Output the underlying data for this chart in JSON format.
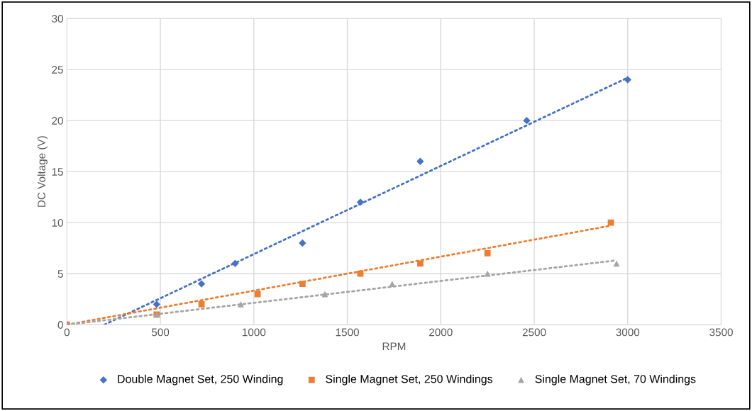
{
  "chart_data": {
    "type": "scatter",
    "xlabel": "RPM",
    "ylabel": "DC Voltage (V)",
    "xlim": [
      0,
      3500
    ],
    "xticks": [
      0,
      500,
      1000,
      1500,
      2000,
      2500,
      3000,
      3500
    ],
    "ylim": [
      0,
      30
    ],
    "yticks": [
      0,
      5,
      10,
      15,
      20,
      25,
      30
    ],
    "grid": true,
    "legend": "bottom",
    "series": [
      {
        "name": "Double Magnet Set, 250 Winding",
        "color": "#4472c4",
        "marker": "diamond",
        "x": [
          0,
          480,
          720,
          900,
          1260,
          1570,
          1890,
          2460,
          3000
        ],
        "values": [
          0,
          2,
          4,
          6,
          8,
          12,
          16,
          20,
          24
        ]
      },
      {
        "name": "Single Magnet Set, 250 Windings",
        "color": "#ed7d31",
        "marker": "square",
        "x": [
          0,
          480,
          720,
          1020,
          1260,
          1570,
          1890,
          2250,
          2910
        ],
        "values": [
          0,
          1,
          2,
          3,
          4,
          5,
          6,
          7,
          10
        ]
      },
      {
        "name": "Single Magnet Set, 70 Windings",
        "color": "#a5a5a5",
        "marker": "triangle",
        "x": [
          0,
          480,
          930,
          1380,
          1740,
          2250,
          2940
        ],
        "values": [
          0,
          1,
          2,
          3,
          4,
          5,
          6
        ]
      },
      {
        "type": "line",
        "color": "#4472c4",
        "line_style": "dotted",
        "marker": "none",
        "x": [
          200,
          3000
        ],
        "values": [
          0,
          24.2
        ]
      },
      {
        "type": "line",
        "color": "#ed7d31",
        "line_style": "dotted",
        "marker": "none",
        "x": [
          0,
          2910
        ],
        "values": [
          0,
          9.7
        ]
      },
      {
        "type": "line",
        "color": "#a5a5a5",
        "line_style": "dotted",
        "marker": "none",
        "x": [
          0,
          2940
        ],
        "values": [
          0,
          6.3
        ]
      }
    ]
  }
}
